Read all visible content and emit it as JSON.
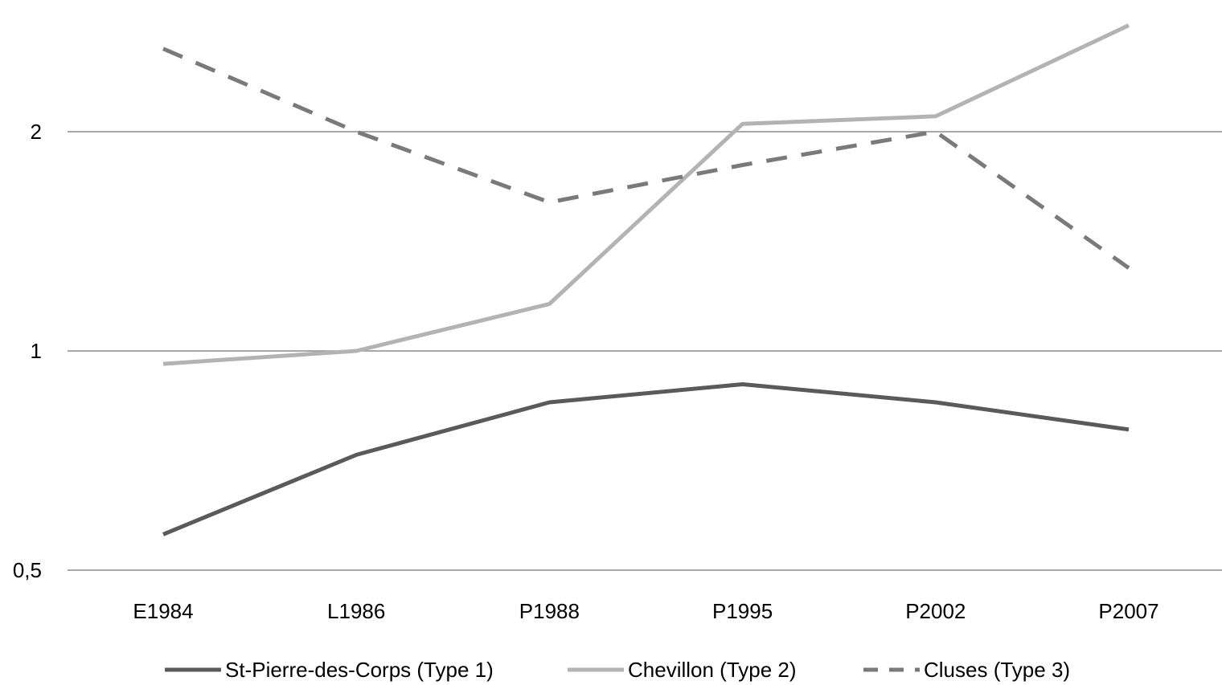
{
  "chart_data": {
    "type": "line",
    "title": "",
    "xlabel": "",
    "ylabel": "",
    "y_scale": "log",
    "ylim": [
      0.5,
      2.8
    ],
    "yticks": [
      {
        "value": 0.5,
        "label": "0,5"
      },
      {
        "value": 1,
        "label": "1"
      },
      {
        "value": 2,
        "label": "2"
      }
    ],
    "grid": true,
    "legend_position": "bottom",
    "categories": [
      "E1984",
      "L1986",
      "P1988",
      "P1995",
      "P2002",
      "P2007"
    ],
    "series": [
      {
        "name": "St-Pierre-des-Corps (Type 1)",
        "values": [
          0.56,
          0.72,
          0.85,
          0.9,
          0.85,
          0.78
        ],
        "color": "#5a5a5a",
        "dash": "solid"
      },
      {
        "name": "Chevillon (Type 2)",
        "values": [
          0.96,
          1.0,
          1.16,
          2.05,
          2.1,
          2.8
        ],
        "color": "#b3b3b3",
        "dash": "solid"
      },
      {
        "name": "Cluses (Type 3)",
        "values": [
          2.6,
          2.0,
          1.6,
          1.8,
          2.0,
          1.3
        ],
        "color": "#7a7a7a",
        "dash": "dashed"
      }
    ]
  }
}
